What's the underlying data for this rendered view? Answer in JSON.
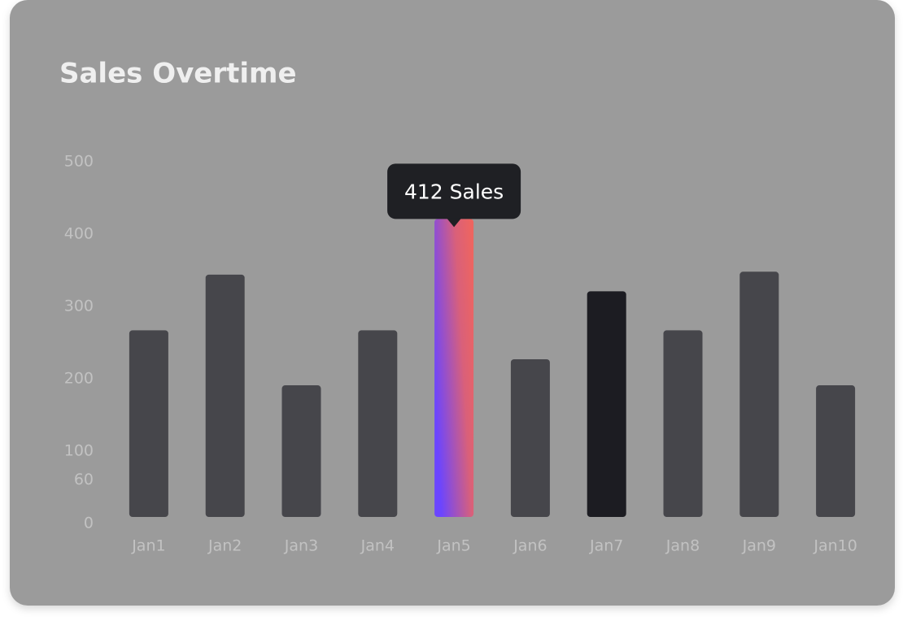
{
  "chart_data": {
    "type": "bar",
    "title": "Sales Overtime",
    "categories": [
      "Jan1",
      "Jan2",
      "Jan3",
      "Jan4",
      "Jan5",
      "Jan6",
      "Jan7",
      "Jan8",
      "Jan9",
      "Jan10"
    ],
    "values": [
      258,
      335,
      182,
      258,
      412,
      218,
      312,
      258,
      339,
      182
    ],
    "value_labels": [
      null,
      null,
      null,
      null,
      "412 Sales",
      null,
      null,
      null,
      null,
      null
    ],
    "colors": [
      "#46464b",
      "#46464b",
      "#46464b",
      "#46464b",
      "gradient",
      "#46464b",
      "#1c1c22",
      "#46464b",
      "#46464b",
      "#46464b"
    ],
    "ylim": [
      0,
      500
    ],
    "yticks": [
      0,
      60,
      100,
      200,
      300,
      400,
      500
    ],
    "grid": false
  }
}
